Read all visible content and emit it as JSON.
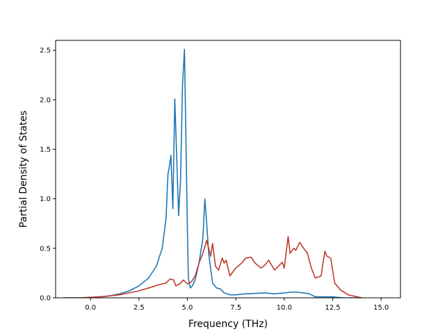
{
  "chart_data": {
    "type": "line",
    "title": "",
    "xlabel": "Frequency (THz)",
    "ylabel": "Partial Density of States",
    "xlim": [
      -1.8,
      16.0
    ],
    "ylim": [
      0,
      2.6
    ],
    "xticks": [
      0.0,
      2.5,
      5.0,
      7.5,
      10.0,
      12.5,
      15.0
    ],
    "xtick_labels": [
      "0.0",
      "2.5",
      "5.0",
      "7.5",
      "10.0",
      "12.5",
      "15.0"
    ],
    "yticks": [
      0.0,
      0.5,
      1.0,
      1.5,
      2.0,
      2.5
    ],
    "ytick_labels": [
      "0.0",
      "0.5",
      "1.0",
      "1.5",
      "2.0",
      "2.5"
    ],
    "grid": false,
    "legend": null,
    "series": [
      {
        "color": "#1f77b4",
        "x": [
          -1.4,
          -0.5,
          0.0,
          0.5,
          1.0,
          1.5,
          2.0,
          2.5,
          3.0,
          3.4,
          3.7,
          3.9,
          4.0,
          4.05,
          4.15,
          4.25,
          4.35,
          4.45,
          4.55,
          4.65,
          4.75,
          4.85,
          4.95,
          5.0,
          5.05,
          5.15,
          5.25,
          5.4,
          5.6,
          5.8,
          5.9,
          6.0,
          6.1,
          6.2,
          6.3,
          6.5,
          6.7,
          6.9,
          7.2,
          7.5,
          8.0,
          9.0,
          9.5,
          10.0,
          10.5,
          11.0,
          11.3,
          11.6,
          12.0,
          12.5,
          13.0,
          14.0
        ],
        "y": [
          0.0,
          0.0,
          0.005,
          0.01,
          0.02,
          0.04,
          0.07,
          0.12,
          0.2,
          0.32,
          0.5,
          0.8,
          1.25,
          1.3,
          1.44,
          0.9,
          2.01,
          1.4,
          0.83,
          1.2,
          2.15,
          2.51,
          1.3,
          0.7,
          0.2,
          0.1,
          0.12,
          0.18,
          0.35,
          0.6,
          1.0,
          0.75,
          0.45,
          0.3,
          0.15,
          0.1,
          0.09,
          0.05,
          0.03,
          0.03,
          0.04,
          0.05,
          0.04,
          0.05,
          0.06,
          0.05,
          0.04,
          0.01,
          0.01,
          0.01,
          0.0,
          0.0
        ]
      },
      {
        "color": "#c0392b",
        "x": [
          -1.4,
          -0.5,
          0.0,
          0.5,
          1.0,
          1.5,
          2.0,
          2.5,
          3.0,
          3.5,
          3.9,
          4.1,
          4.3,
          4.4,
          4.6,
          4.8,
          5.0,
          5.2,
          5.4,
          5.6,
          5.8,
          6.0,
          6.1,
          6.2,
          6.3,
          6.45,
          6.6,
          6.8,
          6.9,
          7.0,
          7.2,
          7.3,
          7.5,
          7.8,
          8.0,
          8.3,
          8.5,
          8.8,
          9.0,
          9.2,
          9.5,
          9.7,
          9.9,
          10.0,
          10.2,
          10.3,
          10.5,
          10.6,
          10.8,
          11.0,
          11.2,
          11.4,
          11.6,
          11.9,
          12.0,
          12.1,
          12.2,
          12.4,
          12.6,
          12.9,
          13.3,
          14.0
        ],
        "y": [
          0.0,
          0.0,
          0.005,
          0.01,
          0.02,
          0.03,
          0.05,
          0.07,
          0.1,
          0.13,
          0.15,
          0.19,
          0.18,
          0.12,
          0.14,
          0.18,
          0.14,
          0.16,
          0.22,
          0.35,
          0.45,
          0.58,
          0.5,
          0.42,
          0.55,
          0.32,
          0.28,
          0.4,
          0.35,
          0.38,
          0.22,
          0.25,
          0.3,
          0.35,
          0.4,
          0.41,
          0.35,
          0.3,
          0.33,
          0.38,
          0.28,
          0.32,
          0.36,
          0.3,
          0.62,
          0.45,
          0.5,
          0.48,
          0.56,
          0.5,
          0.45,
          0.3,
          0.2,
          0.22,
          0.35,
          0.47,
          0.42,
          0.4,
          0.15,
          0.08,
          0.03,
          0.0
        ]
      }
    ]
  }
}
